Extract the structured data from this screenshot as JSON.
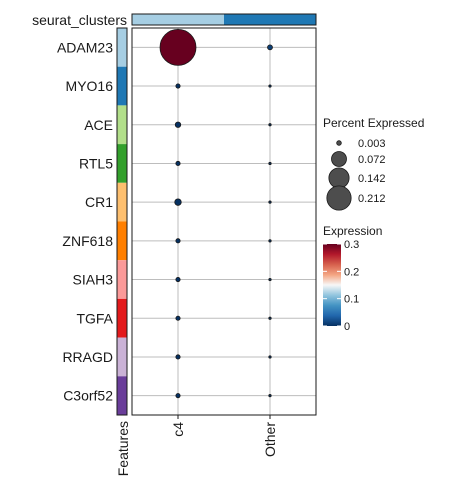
{
  "chart_data": {
    "type": "dotplot",
    "title": "",
    "xlabel": "",
    "ylabel": "",
    "top_annotation_label": "seurat_clusters",
    "left_annotation_label": "Features",
    "groups": [
      "c4",
      "Other"
    ],
    "group_colors": [
      "#a6cee3",
      "#1f78b4"
    ],
    "features": [
      "ADAM23",
      "MYO16",
      "ACE",
      "RTL5",
      "CR1",
      "ZNF618",
      "SIAH3",
      "TGFA",
      "RRAGD",
      "C3orf52"
    ],
    "feature_colors": [
      "#a6cee3",
      "#1f78b4",
      "#b2df8a",
      "#33a02c",
      "#fdbf6f",
      "#ff7f00",
      "#fb9a99",
      "#e31a1c",
      "#cab2d6",
      "#6a3d9a"
    ],
    "series": [
      {
        "group": "c4",
        "percent_expressed": [
          0.212,
          0.003,
          0.005,
          0.003,
          0.007,
          0.003,
          0.003,
          0.003,
          0.003,
          0.003
        ],
        "expression": [
          0.3,
          0.0,
          0.0,
          0.0,
          0.0,
          0.0,
          0.0,
          0.0,
          0.0,
          0.0
        ]
      },
      {
        "group": "Other",
        "percent_expressed": [
          0.004,
          0.0003,
          0.0003,
          0.0003,
          0.0004,
          0.0003,
          0.0003,
          0.0003,
          0.0003,
          0.0003
        ],
        "expression": [
          0.01,
          0.0,
          0.0,
          0.0,
          0.0,
          0.0,
          0.0,
          0.0,
          0.0,
          0.0
        ]
      }
    ],
    "legend_size": {
      "title": "Percent Expressed",
      "values": [
        0.003,
        0.072,
        0.142,
        0.212
      ],
      "labels": [
        "0.003",
        "0.072",
        "0.142",
        "0.212"
      ]
    },
    "legend_color": {
      "title": "Expression",
      "range": [
        0,
        0.3
      ],
      "ticks": [
        0,
        0.1,
        0.2,
        0.3
      ],
      "labels": [
        "0",
        "0.1",
        "0.2",
        "0.3"
      ],
      "colormap": [
        "#053061",
        "#2166ac",
        "#4393c3",
        "#92c5de",
        "#f7f7f7",
        "#f4a582",
        "#d6604d",
        "#b2182b",
        "#67001f"
      ]
    },
    "grid": true,
    "legend_position": "right"
  }
}
